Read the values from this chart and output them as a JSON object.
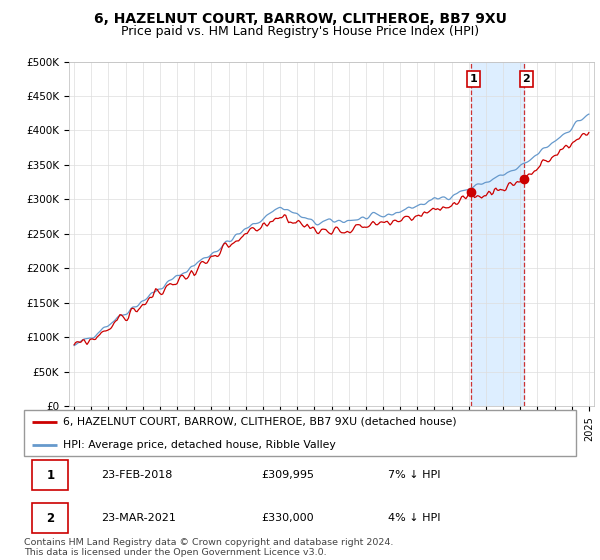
{
  "title": "6, HAZELNUT COURT, BARROW, CLITHEROE, BB7 9XU",
  "subtitle": "Price paid vs. HM Land Registry's House Price Index (HPI)",
  "ylim": [
    0,
    500000
  ],
  "yticks": [
    0,
    50000,
    100000,
    150000,
    200000,
    250000,
    300000,
    350000,
    400000,
    450000,
    500000
  ],
  "ytick_labels": [
    "£0",
    "£50K",
    "£100K",
    "£150K",
    "£200K",
    "£250K",
    "£300K",
    "£350K",
    "£400K",
    "£450K",
    "£500K"
  ],
  "line1_color": "#cc0000",
  "line2_color": "#6699cc",
  "bg_color": "#ffffff",
  "grid_color": "#dddddd",
  "sale1_date_num": 2018.12,
  "sale2_date_num": 2021.21,
  "sale1_price": 309995,
  "sale2_price": 330000,
  "legend_line1": "6, HAZELNUT COURT, BARROW, CLITHEROE, BB7 9XU (detached house)",
  "legend_line2": "HPI: Average price, detached house, Ribble Valley",
  "table_row1": [
    "1",
    "23-FEB-2018",
    "£309,995",
    "7% ↓ HPI"
  ],
  "table_row2": [
    "2",
    "23-MAR-2021",
    "£330,000",
    "4% ↓ HPI"
  ],
  "footer": "Contains HM Land Registry data © Crown copyright and database right 2024.\nThis data is licensed under the Open Government Licence v3.0.",
  "highlight_color": "#ddeeff",
  "vline_color": "#cc3333",
  "title_fontsize": 10,
  "subtitle_fontsize": 9,
  "tick_fontsize": 7.5
}
